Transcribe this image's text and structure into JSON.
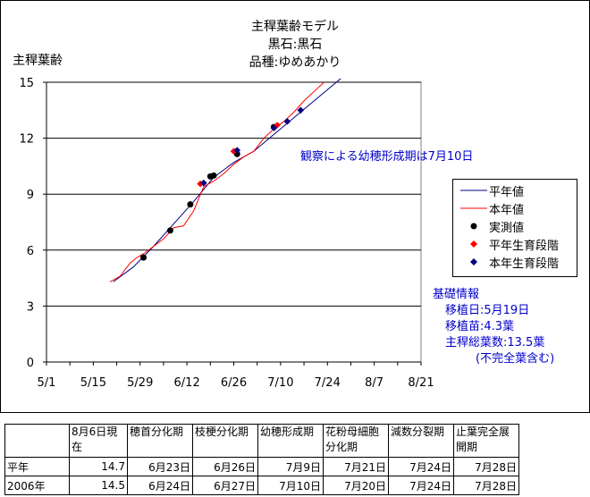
{
  "chart_data": {
    "type": "line",
    "title_lines": [
      "主稈葉齢モデル",
      "黒石:黒石",
      "品種:ゆめあかり"
    ],
    "ylabel": "主稈葉齢",
    "xlabel": "",
    "ylim": [
      0,
      15
    ],
    "yticks": [
      0,
      3,
      6,
      9,
      12,
      15
    ],
    "xticks": [
      "5/1",
      "5/15",
      "5/29",
      "6/12",
      "6/26",
      "7/10",
      "7/24",
      "8/7",
      "8/21"
    ],
    "x_unit": "days after 5/1",
    "grid": "horizontal",
    "legend_position": "right",
    "series": [
      {
        "name": "平年値",
        "kind": "line",
        "color": "#000080",
        "points": [
          [
            20,
            4.3
          ],
          [
            26,
            5.1
          ],
          [
            32,
            6.2
          ],
          [
            38,
            7.4
          ],
          [
            44,
            8.6
          ],
          [
            50,
            9.9
          ],
          [
            56,
            10.7
          ],
          [
            62,
            11.3
          ],
          [
            68,
            12.2
          ],
          [
            74,
            13.1
          ],
          [
            80,
            14.0
          ],
          [
            86,
            14.9
          ],
          [
            88,
            15.2
          ]
        ]
      },
      {
        "name": "本年値",
        "kind": "line",
        "color": "#ff0000",
        "points": [
          [
            19,
            4.3
          ],
          [
            22,
            4.6
          ],
          [
            25,
            5.3
          ],
          [
            27,
            5.6
          ],
          [
            29,
            5.8
          ],
          [
            32,
            6.2
          ],
          [
            35,
            6.6
          ],
          [
            38,
            7.2
          ],
          [
            41,
            7.3
          ],
          [
            44,
            8.1
          ],
          [
            47,
            9.4
          ],
          [
            50,
            9.7
          ],
          [
            53,
            10.1
          ],
          [
            56,
            10.6
          ],
          [
            59,
            11.0
          ],
          [
            62,
            11.3
          ],
          [
            65,
            12.0
          ],
          [
            68,
            12.5
          ],
          [
            71,
            12.9
          ],
          [
            74,
            13.4
          ],
          [
            77,
            14.0
          ],
          [
            80,
            14.5
          ],
          [
            83,
            15.0
          ]
        ]
      },
      {
        "name": "実測値",
        "kind": "marker",
        "marker": "circle",
        "color": "#000000",
        "points": [
          [
            29,
            5.6
          ],
          [
            37,
            7.05
          ],
          [
            43,
            8.45
          ],
          [
            49,
            9.95
          ],
          [
            50,
            10.0
          ],
          [
            57,
            11.15
          ],
          [
            68,
            12.6
          ]
        ]
      },
      {
        "name": "平年生育段階",
        "kind": "marker",
        "marker": "diamond",
        "color": "#ff0000",
        "points": [
          [
            46,
            9.55
          ],
          [
            56,
            11.3
          ],
          [
            69,
            12.7
          ]
        ]
      },
      {
        "name": "本年生育段階",
        "kind": "marker",
        "marker": "diamond",
        "color": "#000080",
        "points": [
          [
            47,
            9.6
          ],
          [
            57,
            11.35
          ],
          [
            68,
            12.55
          ],
          [
            72,
            12.9
          ],
          [
            76,
            13.5
          ]
        ]
      }
    ],
    "annotation": "観察による幼穂形成期は7月10日"
  },
  "info": {
    "heading": "基礎情報",
    "lines": [
      "移植日:5月19日",
      "移植苗:4.3葉",
      "主稈総葉数:13.5葉",
      "(不完全葉含む)"
    ]
  },
  "table": {
    "headers": [
      "",
      "8月6日現在",
      "穂首分化期",
      "枝梗分化期",
      "幼穂形成期",
      "花粉母細胞分化期",
      "減数分裂期",
      "止葉完全展開期"
    ],
    "rows": [
      [
        "平年",
        "14.7",
        "6月23日",
        "6月26日",
        "7月9日",
        "7月21日",
        "7月24日",
        "7月28日"
      ],
      [
        "2006年",
        "14.5",
        "6月24日",
        "6月27日",
        "7月10日",
        "7月20日",
        "7月24日",
        "7月28日"
      ]
    ]
  }
}
